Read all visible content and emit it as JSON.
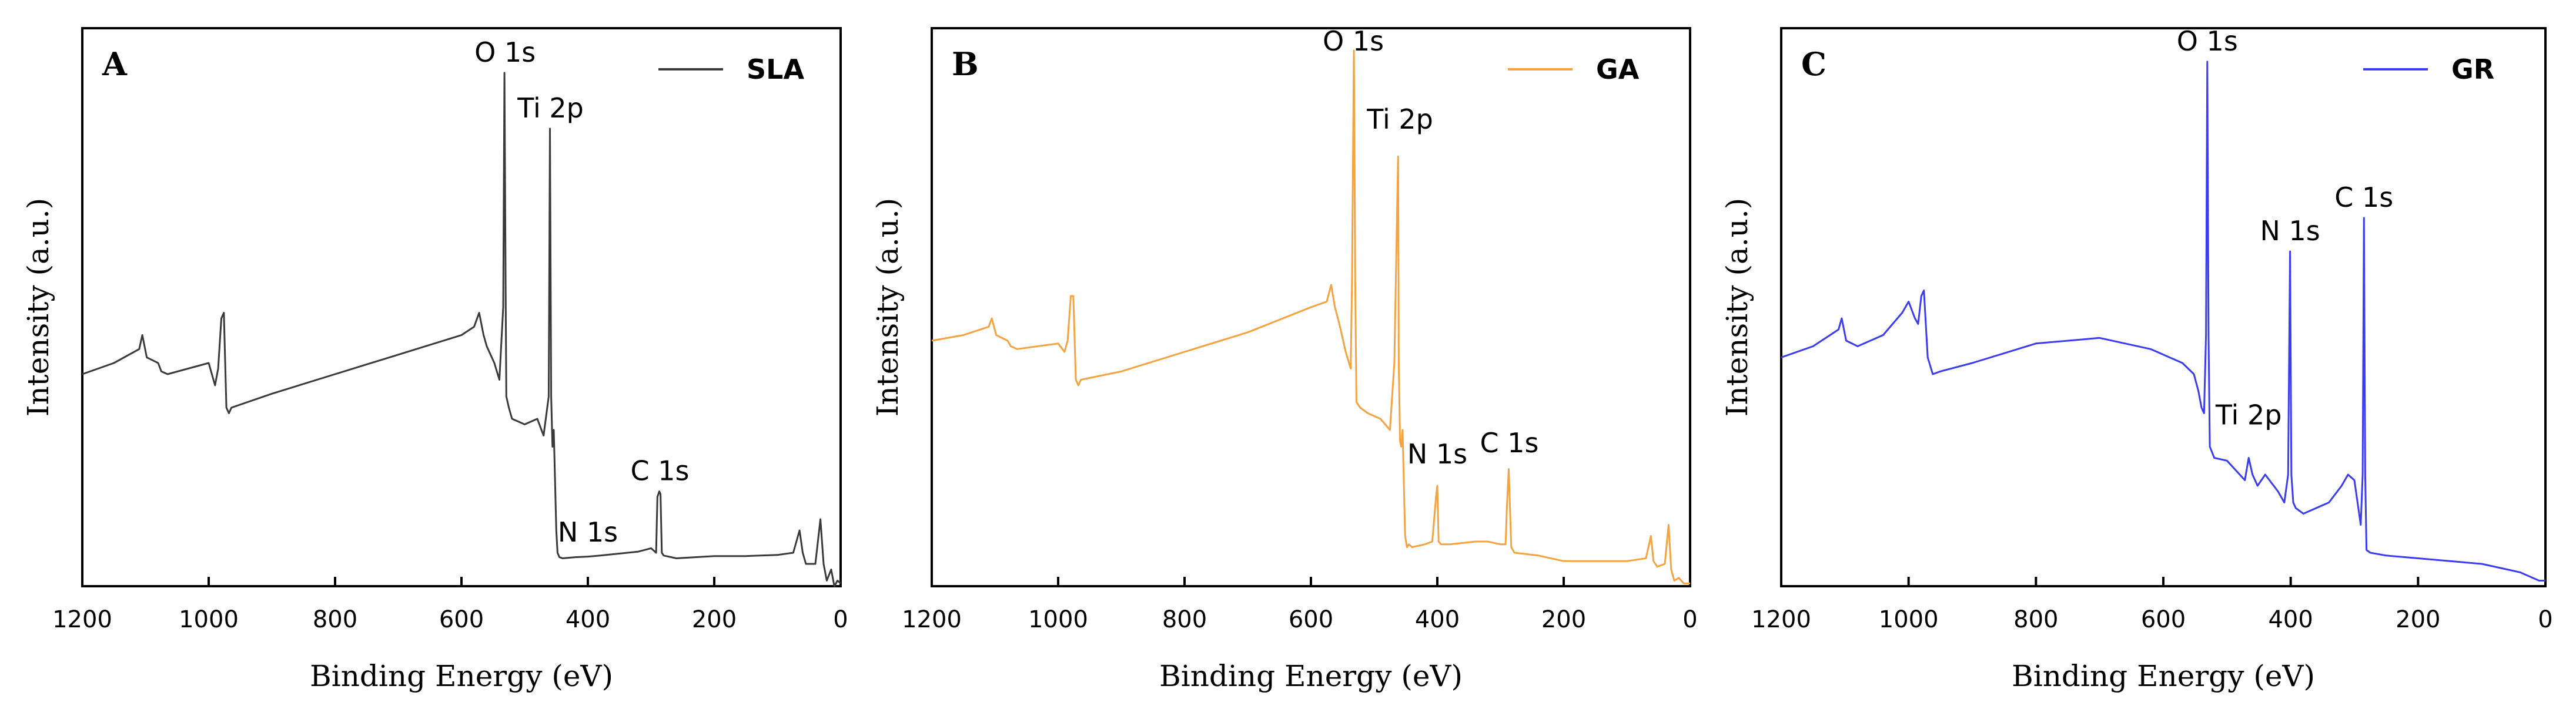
{
  "chart_data": [
    {
      "type": "line",
      "panel_label": "A",
      "xlabel": "Binding Energy (eV)",
      "ylabel": "Intensity (a.u.)",
      "xlim": [
        1200,
        0
      ],
      "ylim": [
        0,
        100
      ],
      "x_ticks": [
        1200,
        1000,
        800,
        600,
        400,
        200,
        0
      ],
      "legend": "top-right",
      "series": [
        {
          "name": "SLA",
          "color": "#3a3a3a",
          "x": [
            1200,
            1150,
            1110,
            1105,
            1098,
            1080,
            1075,
            1065,
            1000,
            990,
            985,
            980,
            976,
            972,
            968,
            964,
            900,
            800,
            700,
            600,
            580,
            572,
            565,
            560,
            548,
            540,
            534,
            532,
            530,
            529,
            525,
            520,
            500,
            480,
            470,
            462,
            460,
            458,
            456,
            454,
            450,
            448,
            445,
            440,
            420,
            400,
            380,
            320,
            300,
            292,
            290,
            287,
            285,
            283,
            280,
            260,
            200,
            150,
            100,
            75,
            65,
            60,
            55,
            40,
            32,
            27,
            22,
            15,
            10,
            5,
            0
          ],
          "y": [
            38.0,
            40.0,
            42.5,
            45.0,
            41.0,
            40.0,
            38.5,
            38.0,
            40.0,
            36.0,
            39.0,
            48.0,
            49.0,
            32.0,
            31.0,
            32.0,
            34.5,
            38.0,
            41.5,
            45.0,
            46.5,
            49.0,
            45.0,
            43.0,
            40.0,
            37.0,
            50.0,
            92.0,
            50.0,
            34.0,
            32.0,
            30.0,
            29.0,
            30.0,
            27.0,
            34.0,
            82.0,
            34.0,
            25.0,
            28.0,
            10.0,
            6.0,
            5.2,
            5.0,
            5.2,
            5.3,
            5.5,
            6.2,
            6.8,
            6.0,
            16.0,
            17.0,
            16.5,
            6.0,
            5.5,
            5.0,
            5.4,
            5.4,
            5.6,
            6.0,
            10.0,
            6.0,
            4.0,
            4.0,
            12.0,
            4.0,
            1.0,
            3.0,
            0.0,
            1.0,
            0.5
          ]
        }
      ],
      "annotations": [
        {
          "text": "O 1s",
          "x": 531,
          "y": 94
        },
        {
          "text": "Ti 2p",
          "x": 459,
          "y": 84
        },
        {
          "text": "C 1s",
          "x": 286,
          "y": 19
        },
        {
          "text": "N 1s",
          "x": 400,
          "y": 8
        }
      ]
    },
    {
      "type": "line",
      "panel_label": "B",
      "xlabel": "Binding Energy (eV)",
      "ylabel": "Intensity (a.u.)",
      "xlim": [
        1200,
        0
      ],
      "ylim": [
        0,
        100
      ],
      "x_ticks": [
        1200,
        1000,
        800,
        600,
        400,
        200,
        0
      ],
      "legend": "top-right",
      "series": [
        {
          "name": "GA",
          "color": "#f5a340",
          "x": [
            1200,
            1150,
            1110,
            1105,
            1098,
            1080,
            1075,
            1065,
            1000,
            990,
            985,
            980,
            976,
            972,
            968,
            964,
            900,
            800,
            700,
            600,
            575,
            568,
            562,
            555,
            545,
            537,
            535,
            532,
            530,
            528,
            522,
            510,
            490,
            475,
            468,
            462,
            461,
            459,
            457,
            455,
            451,
            448,
            445,
            440,
            420,
            408,
            402,
            400,
            398,
            394,
            380,
            340,
            320,
            300,
            292,
            290,
            287,
            285,
            283,
            278,
            240,
            200,
            150,
            100,
            70,
            62,
            58,
            52,
            40,
            34,
            30,
            25,
            18,
            10,
            0
          ],
          "y": [
            44.0,
            45.0,
            46.5,
            48.0,
            45.0,
            44.0,
            43.0,
            42.5,
            43.5,
            42.0,
            44.0,
            52.0,
            52.0,
            37.0,
            36.0,
            37.0,
            38.5,
            42.0,
            45.5,
            50.0,
            51.0,
            54.0,
            50.0,
            47.0,
            42.0,
            39.0,
            55.0,
            96.0,
            55.0,
            33.0,
            32.0,
            31.0,
            30.0,
            28.0,
            40.0,
            77.0,
            40.0,
            26.0,
            25.0,
            28.0,
            9.0,
            7.0,
            7.5,
            7.0,
            7.5,
            8.0,
            16.0,
            18.0,
            8.0,
            7.5,
            7.5,
            8.0,
            8.0,
            7.5,
            7.5,
            14.0,
            21.0,
            14.0,
            7.0,
            6.0,
            5.5,
            4.5,
            4.5,
            4.5,
            5.0,
            9.0,
            4.5,
            3.5,
            4.0,
            11.0,
            3.0,
            1.0,
            1.5,
            0.5,
            0.5
          ]
        }
      ],
      "annotations": [
        {
          "text": "O 1s",
          "x": 533,
          "y": 96
        },
        {
          "text": "Ti 2p",
          "x": 459,
          "y": 82
        },
        {
          "text": "N 1s",
          "x": 400,
          "y": 22
        },
        {
          "text": "C 1s",
          "x": 286,
          "y": 24
        }
      ]
    },
    {
      "type": "line",
      "panel_label": "C",
      "xlabel": "Binding Energy (eV)",
      "ylabel": "Intensity (a.u.)",
      "xlim": [
        1200,
        0
      ],
      "ylim": [
        0,
        100
      ],
      "x_ticks": [
        1200,
        1000,
        800,
        600,
        400,
        200,
        0
      ],
      "legend": "top-right",
      "series": [
        {
          "name": "GR",
          "color": "#3b3bf0",
          "x": [
            1200,
            1150,
            1110,
            1105,
            1098,
            1080,
            1040,
            1010,
            1000,
            990,
            985,
            980,
            976,
            970,
            962,
            950,
            900,
            800,
            700,
            620,
            570,
            552,
            545,
            540,
            536,
            533,
            531,
            529,
            527,
            520,
            500,
            480,
            472,
            466,
            460,
            452,
            440,
            420,
            410,
            404,
            401,
            399,
            396,
            392,
            380,
            340,
            320,
            310,
            300,
            295,
            290,
            287,
            285,
            283,
            281,
            275,
            250,
            200,
            150,
            100,
            60,
            40,
            20,
            10,
            0
          ],
          "y": [
            41.0,
            43.0,
            46.0,
            48.0,
            44.0,
            43.0,
            45.0,
            49.0,
            51.0,
            48.0,
            47.0,
            52.0,
            53.0,
            41.0,
            38.0,
            38.5,
            40.0,
            43.5,
            44.5,
            42.5,
            40.0,
            38.0,
            35.0,
            32.0,
            31.0,
            45.0,
            94.0,
            45.0,
            25.0,
            23.0,
            22.5,
            20.0,
            19.0,
            23.0,
            20.0,
            18.0,
            20.0,
            17.0,
            15.0,
            20.0,
            60.0,
            20.0,
            15.0,
            14.0,
            13.0,
            15.0,
            18.0,
            20.0,
            19.0,
            15.0,
            11.0,
            20.0,
            66.0,
            20.0,
            6.5,
            6.0,
            5.5,
            5.0,
            4.5,
            4.0,
            3.0,
            2.5,
            1.5,
            1.0,
            1.0
          ]
        }
      ],
      "annotations": [
        {
          "text": "O 1s",
          "x": 531,
          "y": 96
        },
        {
          "text": "Ti 2p",
          "x": 466,
          "y": 29
        },
        {
          "text": "N 1s",
          "x": 401,
          "y": 62
        },
        {
          "text": "C 1s",
          "x": 285,
          "y": 68
        }
      ]
    }
  ]
}
